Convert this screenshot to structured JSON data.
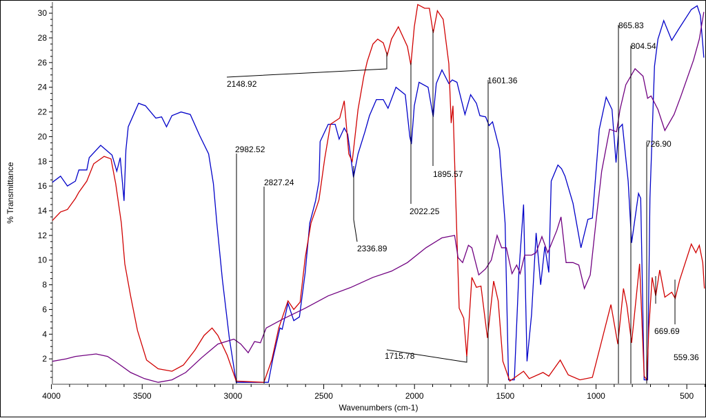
{
  "chart_data": {
    "type": "line",
    "title": "",
    "xlabel": "Wavenumbers (cm-1)",
    "ylabel": "% Transmittance",
    "xlim": [
      4000,
      398
    ],
    "ylim": [
      0,
      30.9
    ],
    "x_ticks": [
      4000,
      3500,
      3000,
      2500,
      2000,
      1500,
      1000,
      500
    ],
    "x_tick_labels": [
      "4000",
      "3500",
      "3000",
      "2500",
      "2000",
      "1500",
      "1000",
      "500"
    ],
    "y_ticks": [
      2,
      4,
      6,
      8,
      10,
      12,
      14,
      16,
      18,
      20,
      22,
      24,
      26,
      28,
      30
    ],
    "y_tick_labels": [
      "2",
      "4",
      "6",
      "8",
      "10",
      "12",
      "14",
      "16",
      "18",
      "20",
      "22",
      "24",
      "26",
      "28",
      "30"
    ],
    "grid": false,
    "series": [
      {
        "name": "blue spectrum",
        "color": "#0000c8",
        "points": [
          [
            3995,
            16.3
          ],
          [
            3950,
            16.8
          ],
          [
            3912,
            16.0
          ],
          [
            3868,
            16.4
          ],
          [
            3849,
            17.3
          ],
          [
            3805,
            17.3
          ],
          [
            3792,
            18.3
          ],
          [
            3729,
            19.3
          ],
          [
            3666,
            18.5
          ],
          [
            3640,
            17.2
          ],
          [
            3621,
            18.3
          ],
          [
            3600,
            14.8
          ],
          [
            3590,
            18.9
          ],
          [
            3577,
            20.8
          ],
          [
            3520,
            22.7
          ],
          [
            3482,
            22.5
          ],
          [
            3425,
            21.5
          ],
          [
            3393,
            21.6
          ],
          [
            3366,
            20.8
          ],
          [
            3336,
            21.7
          ],
          [
            3286,
            22.0
          ],
          [
            3235,
            21.8
          ],
          [
            3184,
            20.1
          ],
          [
            3134,
            18.6
          ],
          [
            3108,
            16.2
          ],
          [
            3089,
            13.0
          ],
          [
            3058,
            8.4
          ],
          [
            3020,
            3.7
          ],
          [
            2982,
            0.1
          ],
          [
            2805,
            0.1
          ],
          [
            2779,
            2.1
          ],
          [
            2741,
            4.5
          ],
          [
            2729,
            4.4
          ],
          [
            2697,
            6.5
          ],
          [
            2665,
            5.1
          ],
          [
            2634,
            5.4
          ],
          [
            2602,
            9.0
          ],
          [
            2577,
            13.0
          ],
          [
            2545,
            14.8
          ],
          [
            2526,
            16.4
          ],
          [
            2520,
            19.6
          ],
          [
            2475,
            21.0
          ],
          [
            2437,
            21.0
          ],
          [
            2415,
            19.8
          ],
          [
            2387,
            20.7
          ],
          [
            2368,
            20.2
          ],
          [
            2336,
            16.7
          ],
          [
            2311,
            18.6
          ],
          [
            2273,
            20.4
          ],
          [
            2248,
            21.7
          ],
          [
            2210,
            23.0
          ],
          [
            2172,
            23.0
          ],
          [
            2146,
            22.3
          ],
          [
            2102,
            24.0
          ],
          [
            2051,
            23.4
          ],
          [
            2026,
            20.0
          ],
          [
            2017,
            19.4
          ],
          [
            2001,
            22.5
          ],
          [
            1975,
            24.4
          ],
          [
            1925,
            24.0
          ],
          [
            1897,
            21.6
          ],
          [
            1880,
            24.3
          ],
          [
            1849,
            25.4
          ],
          [
            1811,
            24.3
          ],
          [
            1792,
            24.6
          ],
          [
            1766,
            24.4
          ],
          [
            1722,
            21.8
          ],
          [
            1691,
            23.4
          ],
          [
            1659,
            22.7
          ],
          [
            1640,
            21.7
          ],
          [
            1608,
            21.6
          ],
          [
            1589,
            20.9
          ],
          [
            1570,
            21.2
          ],
          [
            1532,
            19.0
          ],
          [
            1501,
            13.0
          ],
          [
            1482,
            0.3
          ],
          [
            1450,
            0.3
          ],
          [
            1425,
            9.0
          ],
          [
            1399,
            14.5
          ],
          [
            1380,
            1.8
          ],
          [
            1355,
            5.6
          ],
          [
            1330,
            12.2
          ],
          [
            1305,
            8.0
          ],
          [
            1282,
            11.1
          ],
          [
            1260,
            9.0
          ],
          [
            1247,
            16.4
          ],
          [
            1210,
            17.7
          ],
          [
            1190,
            17.4
          ],
          [
            1171,
            16.8
          ],
          [
            1127,
            14.6
          ],
          [
            1083,
            11.0
          ],
          [
            1045,
            13.3
          ],
          [
            1020,
            13.4
          ],
          [
            982,
            20.6
          ],
          [
            944,
            23.2
          ],
          [
            912,
            22.2
          ],
          [
            890,
            17.9
          ],
          [
            874,
            20.7
          ],
          [
            855,
            21.0
          ],
          [
            823,
            16.4
          ],
          [
            804,
            11.4
          ],
          [
            766,
            15.4
          ],
          [
            754,
            15.0
          ],
          [
            735,
            0.3
          ],
          [
            716,
            0.3
          ],
          [
            703,
            15.0
          ],
          [
            678,
            25.7
          ],
          [
            659,
            27.9
          ],
          [
            627,
            29.4
          ],
          [
            583,
            27.8
          ],
          [
            545,
            28.7
          ],
          [
            475,
            30.3
          ],
          [
            443,
            30.6
          ],
          [
            425,
            29.8
          ],
          [
            406,
            26.4
          ]
        ]
      },
      {
        "name": "red spectrum",
        "color": "#d00000",
        "points": [
          [
            3995,
            13.2
          ],
          [
            3950,
            13.9
          ],
          [
            3912,
            14.1
          ],
          [
            3868,
            15.0
          ],
          [
            3849,
            15.5
          ],
          [
            3805,
            16.4
          ],
          [
            3767,
            17.8
          ],
          [
            3710,
            18.4
          ],
          [
            3672,
            18.2
          ],
          [
            3646,
            16.2
          ],
          [
            3615,
            13.0
          ],
          [
            3596,
            9.7
          ],
          [
            3564,
            7.1
          ],
          [
            3526,
            4.3
          ],
          [
            3476,
            1.9
          ],
          [
            3412,
            1.2
          ],
          [
            3336,
            1.0
          ],
          [
            3273,
            1.5
          ],
          [
            3210,
            2.7
          ],
          [
            3159,
            3.9
          ],
          [
            3115,
            4.5
          ],
          [
            3083,
            3.9
          ],
          [
            3032,
            2.3
          ],
          [
            2982,
            0.2
          ],
          [
            2830,
            0.1
          ],
          [
            2786,
            1.9
          ],
          [
            2748,
            4.5
          ],
          [
            2697,
            6.7
          ],
          [
            2665,
            6.0
          ],
          [
            2630,
            6.6
          ],
          [
            2602,
            10.2
          ],
          [
            2570,
            13.0
          ],
          [
            2539,
            14.3
          ],
          [
            2526,
            14.9
          ],
          [
            2495,
            18.2
          ],
          [
            2463,
            21.0
          ],
          [
            2412,
            21.5
          ],
          [
            2387,
            22.9
          ],
          [
            2362,
            18.6
          ],
          [
            2343,
            18.0
          ],
          [
            2311,
            22.2
          ],
          [
            2279,
            24.9
          ],
          [
            2260,
            26.1
          ],
          [
            2229,
            27.5
          ],
          [
            2203,
            27.9
          ],
          [
            2172,
            27.6
          ],
          [
            2150,
            26.6
          ],
          [
            2127,
            27.9
          ],
          [
            2089,
            28.9
          ],
          [
            2039,
            27.3
          ],
          [
            2020,
            25.8
          ],
          [
            2001,
            28.9
          ],
          [
            1982,
            30.7
          ],
          [
            1944,
            30.4
          ],
          [
            1918,
            30.4
          ],
          [
            1897,
            28.4
          ],
          [
            1874,
            30.2
          ],
          [
            1842,
            29.5
          ],
          [
            1811,
            25.9
          ],
          [
            1798,
            21.1
          ],
          [
            1788,
            22.5
          ],
          [
            1773,
            15.0
          ],
          [
            1754,
            6.1
          ],
          [
            1729,
            5.3
          ],
          [
            1712,
            2.2
          ],
          [
            1684,
            8.6
          ],
          [
            1659,
            7.8
          ],
          [
            1634,
            7.9
          ],
          [
            1598,
            3.7
          ],
          [
            1564,
            8.3
          ],
          [
            1539,
            6.7
          ],
          [
            1513,
            1.8
          ],
          [
            1475,
            0.2
          ],
          [
            1399,
            1.0
          ],
          [
            1368,
            0.4
          ],
          [
            1292,
            0.9
          ],
          [
            1260,
            0.6
          ],
          [
            1197,
            1.9
          ],
          [
            1153,
            0.7
          ],
          [
            1089,
            0.3
          ],
          [
            1020,
            0.5
          ],
          [
            975,
            3.1
          ],
          [
            918,
            6.4
          ],
          [
            880,
            3.2
          ],
          [
            849,
            7.7
          ],
          [
            830,
            6.3
          ],
          [
            804,
            3.3
          ],
          [
            760,
            9.7
          ],
          [
            735,
            0.6
          ],
          [
            720,
            0.3
          ],
          [
            709,
            4.5
          ],
          [
            691,
            8.6
          ],
          [
            671,
            7.1
          ],
          [
            649,
            9.2
          ],
          [
            621,
            7.0
          ],
          [
            583,
            7.4
          ],
          [
            564,
            6.9
          ],
          [
            539,
            8.4
          ],
          [
            475,
            11.3
          ],
          [
            450,
            10.6
          ],
          [
            431,
            11.2
          ],
          [
            412,
            9.8
          ],
          [
            403,
            7.7
          ]
        ]
      },
      {
        "name": "purple spectrum",
        "color": "#700080",
        "points": [
          [
            3995,
            1.8
          ],
          [
            3919,
            2.0
          ],
          [
            3868,
            2.2
          ],
          [
            3754,
            2.4
          ],
          [
            3691,
            2.2
          ],
          [
            3640,
            1.7
          ],
          [
            3564,
            0.9
          ],
          [
            3488,
            0.4
          ],
          [
            3412,
            0.1
          ],
          [
            3336,
            0.3
          ],
          [
            3260,
            0.9
          ],
          [
            3172,
            2.1
          ],
          [
            3083,
            3.2
          ],
          [
            2995,
            3.6
          ],
          [
            2957,
            3.2
          ],
          [
            2916,
            2.5
          ],
          [
            2881,
            3.4
          ],
          [
            2849,
            3.3
          ],
          [
            2817,
            4.5
          ],
          [
            2729,
            5.2
          ],
          [
            2602,
            6.1
          ],
          [
            2476,
            7.1
          ],
          [
            2349,
            7.8
          ],
          [
            2229,
            8.6
          ],
          [
            2127,
            9.1
          ],
          [
            2039,
            9.8
          ],
          [
            1937,
            11.0
          ],
          [
            1849,
            11.8
          ],
          [
            1779,
            12.0
          ],
          [
            1760,
            10.2
          ],
          [
            1735,
            9.8
          ],
          [
            1703,
            11.2
          ],
          [
            1684,
            11.0
          ],
          [
            1646,
            8.8
          ],
          [
            1608,
            9.3
          ],
          [
            1577,
            10.0
          ],
          [
            1545,
            12.0
          ],
          [
            1520,
            11.0
          ],
          [
            1494,
            11.0
          ],
          [
            1463,
            8.9
          ],
          [
            1437,
            9.6
          ],
          [
            1418,
            8.9
          ],
          [
            1393,
            10.4
          ],
          [
            1355,
            10.4
          ],
          [
            1330,
            10.6
          ],
          [
            1298,
            11.9
          ],
          [
            1266,
            10.6
          ],
          [
            1216,
            12.4
          ],
          [
            1193,
            13.5
          ],
          [
            1165,
            9.8
          ],
          [
            1127,
            9.8
          ],
          [
            1095,
            9.6
          ],
          [
            1064,
            7.7
          ],
          [
            1032,
            8.8
          ],
          [
            1001,
            13.0
          ],
          [
            969,
            17.2
          ],
          [
            925,
            20.6
          ],
          [
            887,
            20.4
          ],
          [
            868,
            22.2
          ],
          [
            836,
            24.2
          ],
          [
            785,
            25.5
          ],
          [
            741,
            24.9
          ],
          [
            716,
            23.1
          ],
          [
            697,
            23.3
          ],
          [
            659,
            22.2
          ],
          [
            621,
            20.5
          ],
          [
            570,
            21.8
          ],
          [
            532,
            23.3
          ],
          [
            463,
            26.2
          ],
          [
            431,
            27.9
          ],
          [
            406,
            30.1
          ]
        ]
      }
    ],
    "annotations": [
      {
        "label": "2148.92"
      },
      {
        "label": "2982.52"
      },
      {
        "label": "2827.24"
      },
      {
        "label": "2336.89"
      },
      {
        "label": "2022.25"
      },
      {
        "label": "1895.57"
      },
      {
        "label": "1601.36"
      },
      {
        "label": "1715.78"
      },
      {
        "label": "865.83"
      },
      {
        "label": "804.54"
      },
      {
        "label": "726.90"
      },
      {
        "label": "669.69"
      },
      {
        "label": "559.36"
      }
    ]
  }
}
